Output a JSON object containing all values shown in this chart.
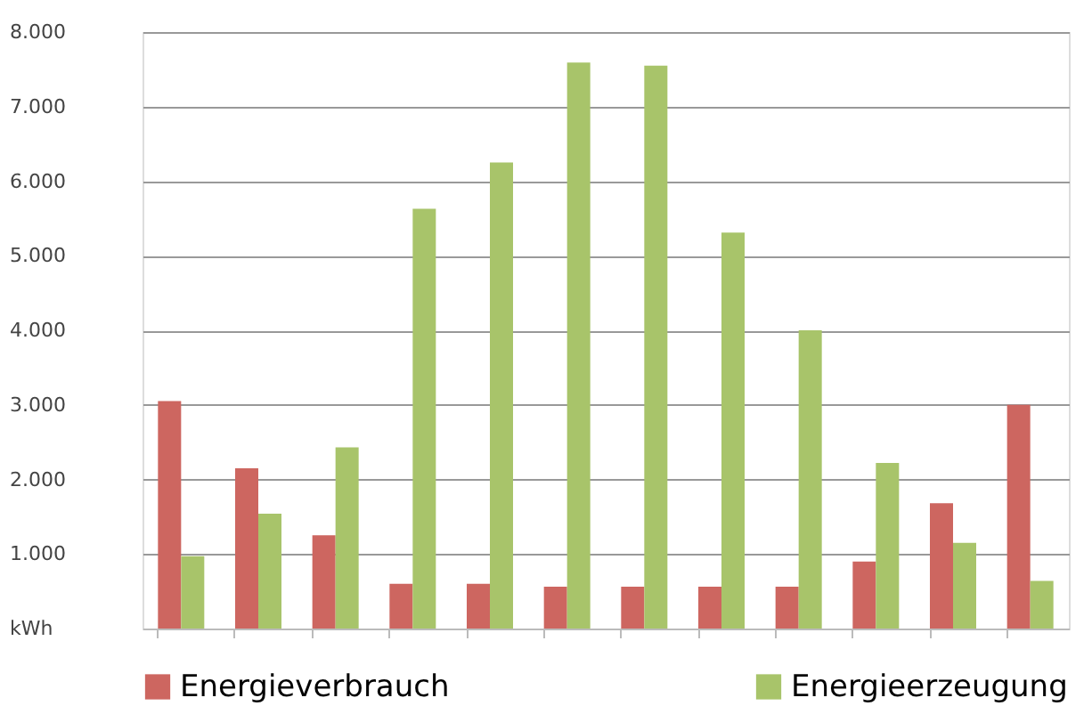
{
  "chart_data": {
    "type": "bar",
    "categories": [
      null,
      null,
      null,
      null,
      null,
      null,
      null,
      null,
      null,
      null,
      null,
      null
    ],
    "series": [
      {
        "name": "Energieverbrauch",
        "color": "#cd6660",
        "values": [
          3050,
          2150,
          1250,
          600,
          600,
          560,
          560,
          560,
          560,
          900,
          1680,
          3000
        ]
      },
      {
        "name": "Energieerzeugung",
        "color": "#a8c46a",
        "values": [
          970,
          1540,
          2430,
          5630,
          6250,
          7590,
          7550,
          5310,
          4000,
          2220,
          1150,
          640
        ]
      }
    ],
    "ylim": [
      0,
      8000
    ],
    "yticks": [
      {
        "value": 0,
        "label": "kWh"
      },
      {
        "value": 1000,
        "label": "1.000"
      },
      {
        "value": 2000,
        "label": "2.000"
      },
      {
        "value": 3000,
        "label": "3.000"
      },
      {
        "value": 4000,
        "label": "4.000"
      },
      {
        "value": 5000,
        "label": "5.000"
      },
      {
        "value": 6000,
        "label": "6.000"
      },
      {
        "value": 7000,
        "label": "7.000"
      },
      {
        "value": 8000,
        "label": "8.000"
      }
    ],
    "grid": "y",
    "legend": "bottom"
  }
}
